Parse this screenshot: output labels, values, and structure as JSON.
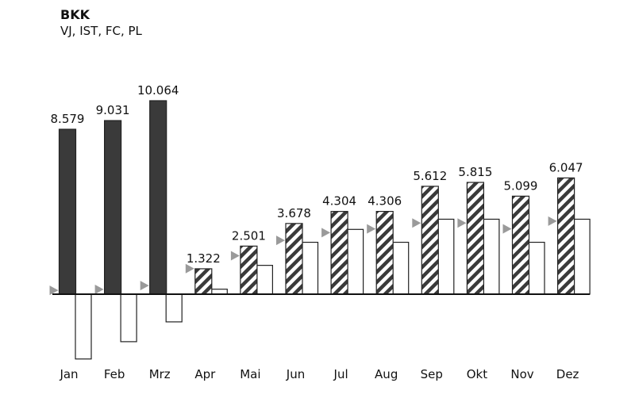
{
  "title": "BKK",
  "subtitle": "VJ, IST, FC, PL",
  "chart_data": {
    "type": "bar",
    "categories": [
      "Jan",
      "Feb",
      "Mrz",
      "Apr",
      "Mai",
      "Jun",
      "Jul",
      "Aug",
      "Sep",
      "Okt",
      "Nov",
      "Dez"
    ],
    "series": [
      {
        "name": "IST",
        "values": [
          8579,
          9031,
          10064,
          null,
          null,
          null,
          null,
          null,
          null,
          null,
          null,
          null
        ],
        "labels": [
          "8.579",
          "9.031",
          "10.064",
          "",
          "",
          "",
          "",
          "",
          "",
          "",
          "",
          ""
        ]
      },
      {
        "name": "FC",
        "values": [
          null,
          null,
          null,
          1322,
          2501,
          3678,
          4304,
          4306,
          5612,
          5815,
          5099,
          6047
        ],
        "labels": [
          "",
          "",
          "",
          "1.322",
          "2.501",
          "3.678",
          "4.304",
          "4.306",
          "5.612",
          "5.815",
          "5.099",
          "6.047"
        ]
      },
      {
        "name": "PL",
        "values": [
          -3370,
          -2470,
          -1440,
          260,
          1500,
          2700,
          3370,
          2700,
          3900,
          3900,
          2700,
          3900
        ]
      },
      {
        "name": "VJ",
        "values": [
          200,
          250,
          450,
          1330,
          2000,
          2800,
          3200,
          3400,
          3700,
          3700,
          3400,
          3800
        ]
      }
    ],
    "ylim": [
      -3800,
      10800
    ],
    "xlabel": "",
    "ylabel": "",
    "grid": false,
    "legend": "none",
    "colors": {
      "actual": "#3a3a3a",
      "forecast_stripe": "#3a3a3a",
      "plan": "#ffffff",
      "prior_year_marker": "#9a9a9a",
      "axis": "#111111"
    }
  }
}
